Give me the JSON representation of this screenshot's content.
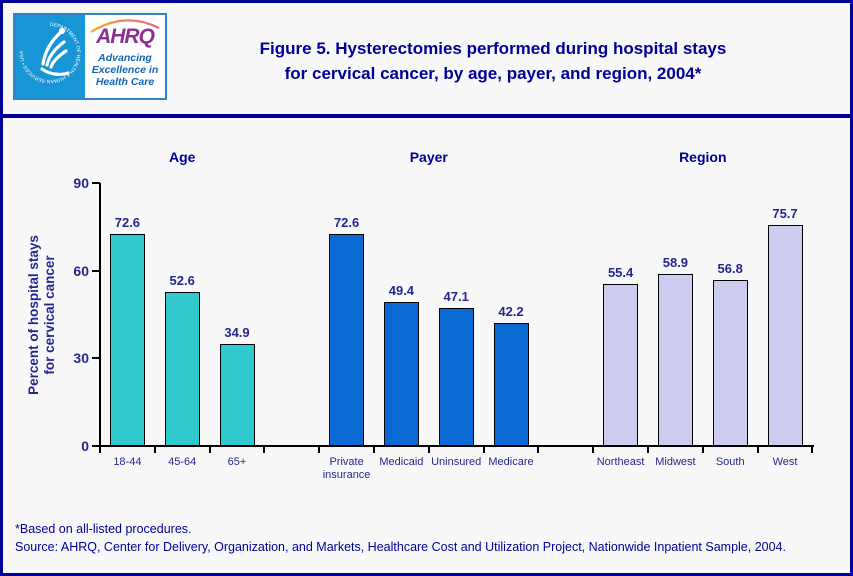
{
  "header": {
    "logo": {
      "hhs_ring_text": "DEPARTMENT OF HEALTH & HUMAN SERVICES • USA",
      "ahrq_text": "AHRQ",
      "tagline_line1": "Advancing",
      "tagline_line2": "Excellence in",
      "tagline_line3": "Health Care"
    },
    "title_line1": "Figure 5. Hysterectomies performed during hospital stays",
    "title_line2": "for cervical cancer, by age, payer, and region, 2004*"
  },
  "chart_data": {
    "type": "bar",
    "title": "Figure 5. Hysterectomies performed during hospital stays for cervical cancer, by age, payer, and region, 2004*",
    "ylabel": "Percent of hospital stays for cervical cancer",
    "ylabel_line1": "Percent of hospital stays",
    "ylabel_line2": "for cervical cancer",
    "ylim": [
      0,
      90
    ],
    "yticks": [
      0,
      30,
      60,
      90
    ],
    "grid": false,
    "legend": "none",
    "groups": [
      {
        "label": "Age",
        "color": "#2FC9CE",
        "categories": [
          "18-44",
          "45-64",
          "65+"
        ],
        "values": [
          72.6,
          52.6,
          34.9
        ]
      },
      {
        "label": "Payer",
        "color": "#0A69D2",
        "categories": [
          "Private insurance",
          "Medicaid",
          "Uninsured",
          "Medicare"
        ],
        "values": [
          72.6,
          49.4,
          47.1,
          42.2
        ]
      },
      {
        "label": "Region",
        "color": "#CDCDF2",
        "categories": [
          "Northeast",
          "Midwest",
          "South",
          "West"
        ],
        "values": [
          55.4,
          58.9,
          56.8,
          75.7
        ]
      }
    ]
  },
  "footer": {
    "note": "*Based on all-listed procedures.",
    "source": "Source: AHRQ, Center for Delivery, Organization, and Markets, Healthcare Cost and Utilization Project, Nationwide Inpatient Sample, 2004."
  },
  "colors": {
    "border_navy": "#000099",
    "chart_text": "#26268F",
    "age_bar": "#2FC9CE",
    "payer_bar": "#0A69D2",
    "region_bar": "#CDCDF2",
    "background": "#F8F8F8",
    "hhs_blue": "#1795D4",
    "ahrq_purple": "#8B3090",
    "tagline_blue": "#1366B8"
  }
}
